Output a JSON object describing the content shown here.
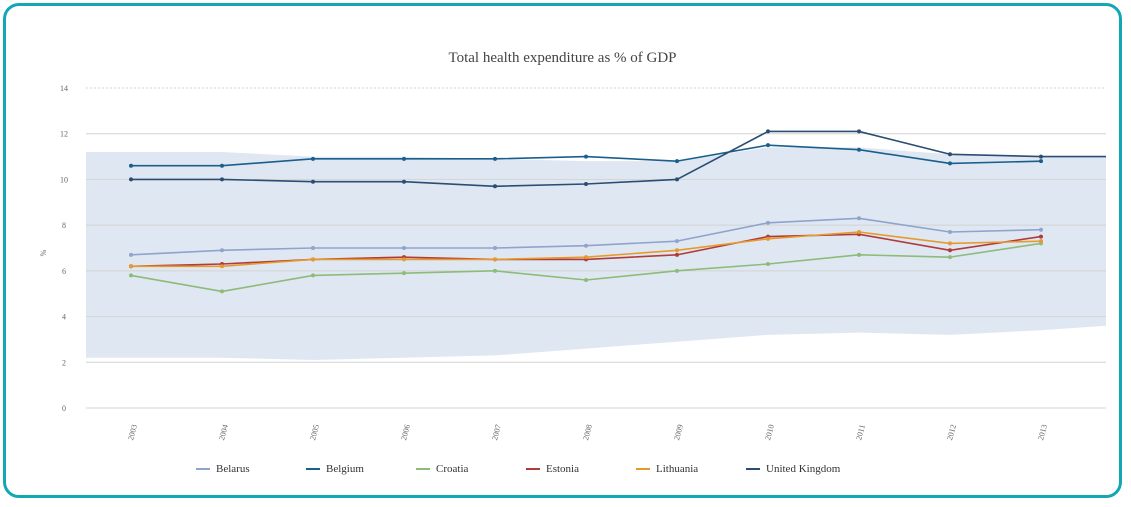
{
  "chart_data": {
    "type": "line",
    "title": "Total health expenditure as % of GDP",
    "xlabel": "",
    "ylabel": "%",
    "ylim": [
      0,
      14
    ],
    "yticks": [
      "0",
      "2",
      "4",
      "6",
      "8",
      "10",
      "12",
      "14"
    ],
    "categories": [
      "2003",
      "2004",
      "2005",
      "2006",
      "2007",
      "2008",
      "2009",
      "2010",
      "2011",
      "2012",
      "2013"
    ],
    "grid": true,
    "legend_position": "bottom",
    "range_band": {
      "upper": [
        11.2,
        11.2,
        11.0,
        11.0,
        10.9,
        10.8,
        10.8,
        11.4,
        11.4,
        11.1,
        11.0
      ],
      "lower": [
        2.2,
        2.2,
        2.1,
        2.2,
        2.3,
        2.6,
        2.9,
        3.2,
        3.3,
        3.2,
        3.4
      ]
    },
    "series": [
      {
        "name": "Belarus",
        "color": "#8fa3cc",
        "values": [
          6.7,
          6.9,
          7.0,
          7.0,
          7.0,
          7.1,
          7.3,
          8.1,
          8.3,
          7.7,
          7.8
        ]
      },
      {
        "name": "Belgium",
        "color": "#1a5f8c",
        "values": [
          10.6,
          10.6,
          10.9,
          10.9,
          10.9,
          11.0,
          10.8,
          11.5,
          11.3,
          10.7,
          10.8
        ]
      },
      {
        "name": "Croatia",
        "color": "#8dbb7a",
        "values": [
          5.8,
          5.1,
          5.8,
          5.9,
          6.0,
          5.6,
          6.0,
          6.3,
          6.7,
          6.6,
          7.2
        ]
      },
      {
        "name": "Estonia",
        "color": "#b13a3a",
        "values": [
          6.2,
          6.3,
          6.5,
          6.6,
          6.5,
          6.5,
          6.7,
          7.5,
          7.6,
          6.9,
          7.5
        ]
      },
      {
        "name": "Lithuania",
        "color": "#e69a2e",
        "values": [
          6.2,
          6.2,
          6.5,
          6.5,
          6.5,
          6.6,
          6.9,
          7.4,
          7.7,
          7.2,
          7.3
        ]
      },
      {
        "name": "United Kingdom",
        "color": "#2b4d73",
        "values": [
          10.0,
          10.0,
          9.9,
          9.9,
          9.7,
          9.8,
          10.0,
          12.1,
          12.1,
          11.1,
          11.0
        ]
      }
    ]
  },
  "colors": {
    "frame": "#12a7b6",
    "band": "#dfe8f2",
    "grid": "#d3d3d3"
  }
}
